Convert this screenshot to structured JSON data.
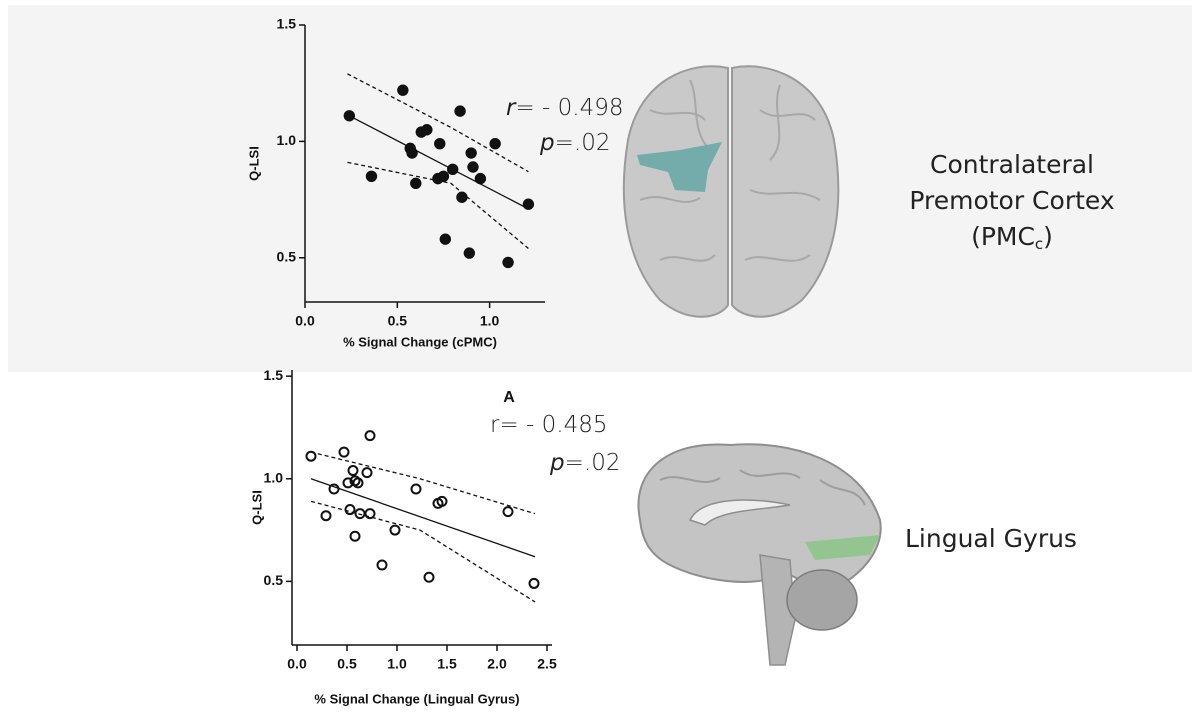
{
  "chart_data": [
    {
      "type": "scatter",
      "marker": "filled",
      "xlabel": "% Signal Change (cPMC)",
      "ylabel": "Q-LSI",
      "xlim": [
        0,
        1.3
      ],
      "ylim": [
        0.31,
        1.5
      ],
      "xticks": [
        {
          "value": 0,
          "label": "0.0"
        },
        0.5,
        {
          "value": 1,
          "label": "1.0"
        }
      ],
      "yticks": [
        0.5,
        {
          "value": 1,
          "label": "1.0"
        },
        1.5
      ],
      "x": [
        0.24,
        0.53,
        0.84,
        0.57,
        0.58,
        0.63,
        0.66,
        0.73,
        1.03,
        0.9,
        0.91,
        0.8,
        0.72,
        0.75,
        0.95,
        0.36,
        0.6,
        0.85,
        0.76,
        0.89,
        1.1,
        1.21
      ],
      "values": [
        1.11,
        1.22,
        1.13,
        0.97,
        0.95,
        1.04,
        1.05,
        0.99,
        0.99,
        0.95,
        0.89,
        0.88,
        0.84,
        0.85,
        0.84,
        0.85,
        0.82,
        0.76,
        0.58,
        0.52,
        0.48,
        0.73
      ],
      "fit_x": [
        0.24,
        1.21
      ],
      "fit_y": [
        1.11,
        0.71
      ],
      "ci_x": [
        0.23,
        0.79,
        1.21
      ],
      "ci_upper": [
        1.29,
        1.06,
        0.87
      ],
      "ci_lower": [
        0.91,
        0.82,
        0.54
      ],
      "annotation": {
        "r": "r",
        "r_text": "= - 0.498",
        "p": "p",
        "p_text": "=.02"
      },
      "region_lines": [
        "Contralateral",
        "Premotor Cortex"
      ],
      "region_abbrev": "(PMC",
      "region_sub": "c",
      "region_close": ")"
    },
    {
      "type": "scatter",
      "marker": "open",
      "xlabel": "% Signal Change (Lingual Gyrus)",
      "ylabel": "Q-LSI",
      "xlim": [
        -0.05,
        2.55
      ],
      "ylim": [
        0.19,
        1.53
      ],
      "xticks": [
        {
          "value": 0,
          "label": "0.0"
        },
        0.5,
        {
          "value": 1,
          "label": "1.0"
        },
        1.5,
        {
          "value": 2,
          "label": "2.0"
        },
        2.5
      ],
      "yticks": [
        0.5,
        {
          "value": 1,
          "label": "1.0"
        },
        1.5
      ],
      "x": [
        0.14,
        0.47,
        0.73,
        0.56,
        0.7,
        0.51,
        0.58,
        0.61,
        0.37,
        1.19,
        1.45,
        1.41,
        2.11,
        0.29,
        0.53,
        0.63,
        0.73,
        0.98,
        0.58,
        0.85,
        1.32,
        2.37
      ],
      "values": [
        1.11,
        1.13,
        1.21,
        1.04,
        1.03,
        0.98,
        0.99,
        0.98,
        0.95,
        0.95,
        0.89,
        0.88,
        0.84,
        0.82,
        0.85,
        0.83,
        0.83,
        0.75,
        0.72,
        0.58,
        0.52,
        0.49
      ],
      "fit_x": [
        0.14,
        2.38
      ],
      "fit_y": [
        1.0,
        0.62
      ],
      "ci_x": [
        0.14,
        1.23,
        2.38
      ],
      "ci_upper": [
        1.13,
        1.0,
        0.83
      ],
      "ci_lower": [
        0.89,
        0.75,
        0.4
      ],
      "annotation": {
        "label": "A",
        "r": "r",
        "r_text": "= -  0.485",
        "p": "p",
        "p_text": "=.02"
      },
      "region_lines": [
        "Lingual Gyrus"
      ]
    }
  ]
}
